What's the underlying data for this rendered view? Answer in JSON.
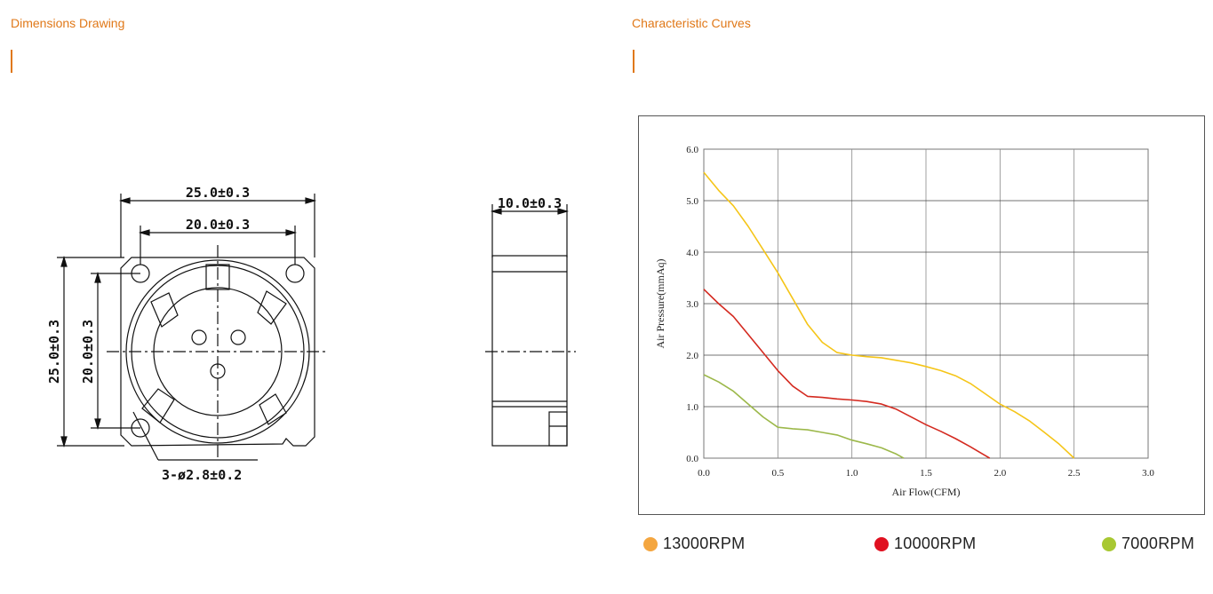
{
  "dimensions": {
    "title": "Dimensions Drawing",
    "labels": {
      "outer_width": "25.0±0.3",
      "inner_width": "20.0±0.3",
      "outer_height": "25.0±0.3",
      "inner_height": "20.0±0.3",
      "depth": "10.0±0.3",
      "holes": "3-ø2.8±0.2"
    }
  },
  "curves": {
    "title": "Characteristic Curves"
  },
  "colors": {
    "accent": "#e07818",
    "rpm13000": "#f5c518",
    "rpm10000": "#d42a20",
    "rpm7000": "#9cb84a",
    "legend13000": "#f4a640",
    "legend10000": "#e01020",
    "legend7000": "#a8c832"
  },
  "chart_data": {
    "type": "line",
    "xlabel": "Air Flow(CFM)",
    "ylabel": "Air Pressure(mmAq)",
    "xlim": [
      0,
      3.0
    ],
    "ylim": [
      0,
      6.0
    ],
    "xticks": [
      "0.0",
      "0.5",
      "1.0",
      "1.5",
      "2.0",
      "2.5",
      "3.0"
    ],
    "yticks": [
      "0.0",
      "1.0",
      "2.0",
      "3.0",
      "4.0",
      "5.0",
      "6.0"
    ],
    "grid": true,
    "legend_position": "bottom",
    "series": [
      {
        "name": "13000RPM",
        "color": "#f5c518",
        "points": [
          [
            0.0,
            5.55
          ],
          [
            0.1,
            5.2
          ],
          [
            0.2,
            4.9
          ],
          [
            0.3,
            4.5
          ],
          [
            0.4,
            4.05
          ],
          [
            0.5,
            3.6
          ],
          [
            0.6,
            3.1
          ],
          [
            0.7,
            2.6
          ],
          [
            0.8,
            2.25
          ],
          [
            0.9,
            2.05
          ],
          [
            1.0,
            2.0
          ],
          [
            1.1,
            1.97
          ],
          [
            1.2,
            1.95
          ],
          [
            1.3,
            1.9
          ],
          [
            1.4,
            1.85
          ],
          [
            1.5,
            1.78
          ],
          [
            1.6,
            1.7
          ],
          [
            1.7,
            1.6
          ],
          [
            1.8,
            1.45
          ],
          [
            1.9,
            1.25
          ],
          [
            2.0,
            1.05
          ],
          [
            2.1,
            0.9
          ],
          [
            2.2,
            0.72
          ],
          [
            2.3,
            0.5
          ],
          [
            2.4,
            0.27
          ],
          [
            2.5,
            0.0
          ]
        ]
      },
      {
        "name": "10000RPM",
        "color": "#d42a20",
        "points": [
          [
            0.0,
            3.28
          ],
          [
            0.1,
            3.0
          ],
          [
            0.2,
            2.75
          ],
          [
            0.3,
            2.4
          ],
          [
            0.4,
            2.05
          ],
          [
            0.5,
            1.7
          ],
          [
            0.6,
            1.4
          ],
          [
            0.7,
            1.2
          ],
          [
            0.8,
            1.18
          ],
          [
            0.9,
            1.15
          ],
          [
            1.0,
            1.13
          ],
          [
            1.1,
            1.1
          ],
          [
            1.2,
            1.05
          ],
          [
            1.3,
            0.95
          ],
          [
            1.4,
            0.8
          ],
          [
            1.5,
            0.65
          ],
          [
            1.6,
            0.52
          ],
          [
            1.7,
            0.38
          ],
          [
            1.8,
            0.22
          ],
          [
            1.9,
            0.05
          ],
          [
            1.93,
            0.0
          ]
        ]
      },
      {
        "name": "7000RPM",
        "color": "#9cb84a",
        "points": [
          [
            0.0,
            1.62
          ],
          [
            0.1,
            1.48
          ],
          [
            0.2,
            1.3
          ],
          [
            0.3,
            1.05
          ],
          [
            0.4,
            0.8
          ],
          [
            0.5,
            0.6
          ],
          [
            0.6,
            0.57
          ],
          [
            0.7,
            0.55
          ],
          [
            0.8,
            0.5
          ],
          [
            0.9,
            0.45
          ],
          [
            1.0,
            0.35
          ],
          [
            1.1,
            0.28
          ],
          [
            1.2,
            0.2
          ],
          [
            1.3,
            0.08
          ],
          [
            1.35,
            0.0
          ]
        ]
      }
    ]
  }
}
